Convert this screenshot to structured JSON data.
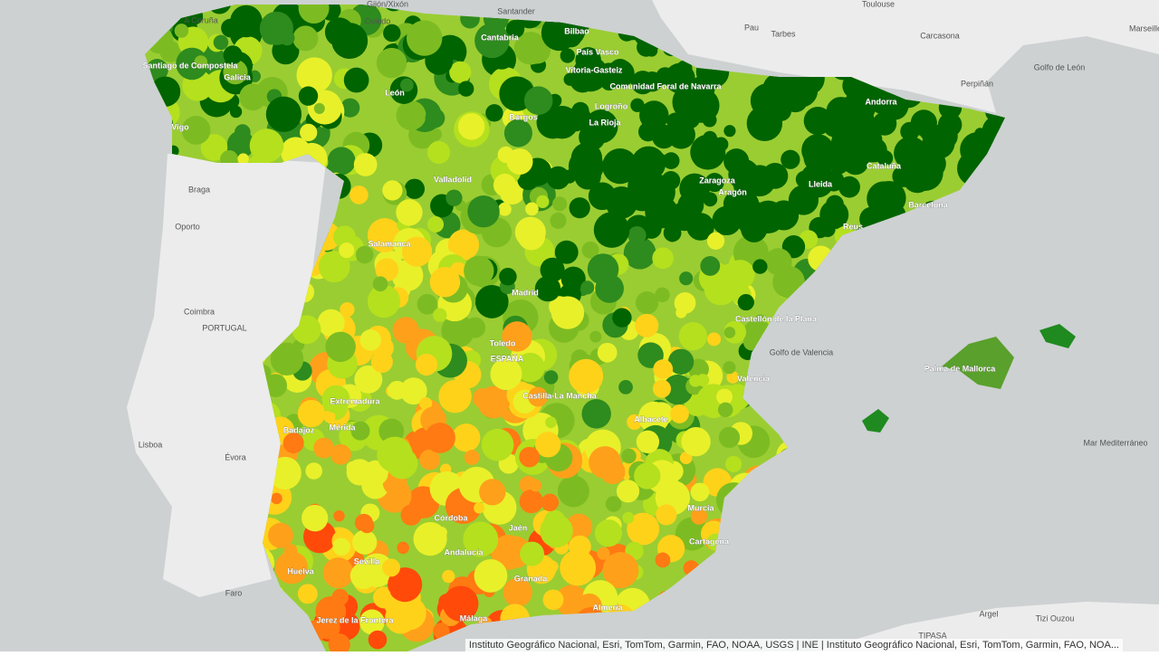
{
  "map": {
    "labels": [
      "A Coruña",
      "Gijón/Xixón",
      "Oviedo",
      "Santander",
      "Bilbao",
      "Cantabria",
      "Santiago de Compostela",
      "Galicia",
      "Vigo",
      "León",
      "Burgos",
      "País Vasco",
      "Vitoria-Gasteiz",
      "Comunidad Foral de Navarra",
      "Logroño",
      "La Rioja",
      "Pau",
      "Tarbes",
      "Toulouse",
      "Carcasona",
      "Perpiñán",
      "Golfo de León",
      "Marseille",
      "Andorra",
      "Cataluña",
      "Barcelona",
      "Lleida",
      "Zaragoza",
      "Aragón",
      "Reus",
      "Braga",
      "Oporto",
      "Valladolid",
      "Salamanca",
      "Madrid",
      "Coimbra",
      "PORTUGAL",
      "Toledo",
      "ESPAÑA",
      "Castellón de la Plana",
      "Golfo de Valencia",
      "Valencia",
      "Palma de Mallorca",
      "Extremadura",
      "Castilla-La Mancha",
      "Albacete",
      "Mérida",
      "Badajoz",
      "Lisboa",
      "Évora",
      "Mar Mediterráneo",
      "Murcia",
      "Cartagena",
      "Córdoba",
      "Jaén",
      "Andalucía",
      "Sevilla",
      "Huelva",
      "Granada",
      "Faro",
      "Jerez de la Frontera",
      "Málaga",
      "Almería",
      "Argel",
      "Tizi Ouzou",
      "TIPASA"
    ],
    "attribution": "Instituto Geográfico Nacional, Esri, TomTom, Garmin, FAO, NOAA, USGS | INE | Instituto Geográfico Nacional, Esri, TomTom, Garmin, FAO, NOA..."
  }
}
